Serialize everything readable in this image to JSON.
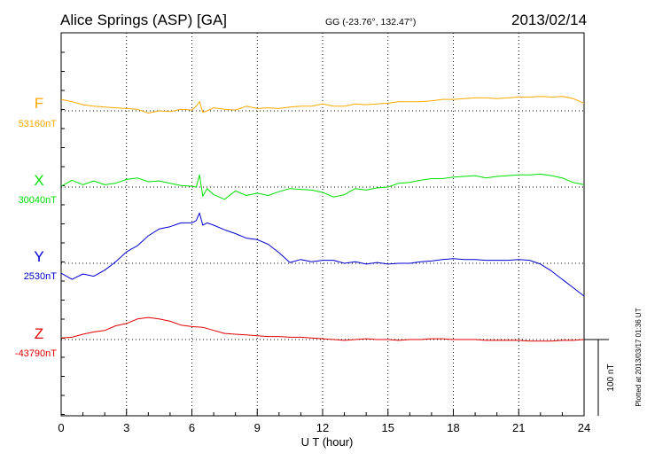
{
  "header": {
    "station": "Alice Springs (ASP)  [GA]",
    "coords": "GG (-23.76°, 132.47°)",
    "date": "2013/02/14"
  },
  "plotted_note": "Plotted at 2013/03/17 01:36 UT",
  "scale_label": "100 nT",
  "chart_data": {
    "type": "line",
    "xlabel": "U T (hour)",
    "xlim": [
      0,
      24
    ],
    "xticks": [
      0,
      3,
      6,
      9,
      12,
      15,
      18,
      21,
      24
    ],
    "xtick_labels": [
      "0",
      "3",
      "6",
      "9",
      "12",
      "15",
      "18",
      "21",
      "24"
    ],
    "units": "nT",
    "scale_bar_nT": 100,
    "grid": true,
    "series": [
      {
        "name": "F",
        "baseline_label": "53160nT",
        "baseline_nT": 53160,
        "color": "#ffa800",
        "x": [
          0,
          0.5,
          1,
          1.5,
          2,
          2.5,
          3,
          3.5,
          4,
          4.5,
          5,
          5.5,
          6,
          6.2,
          6.35,
          6.5,
          6.7,
          7,
          7.5,
          8,
          8.5,
          9,
          9.5,
          10,
          10.5,
          11,
          11.5,
          12,
          12.5,
          13,
          13.5,
          14,
          14.5,
          15,
          15.5,
          16,
          16.5,
          17,
          17.5,
          18,
          18.5,
          19,
          19.5,
          20,
          20.5,
          21,
          21.5,
          22,
          22.5,
          23,
          23.5,
          24
        ],
        "y": [
          53175,
          53172,
          53168,
          53166,
          53165,
          53164,
          53163,
          53162,
          53157,
          53160,
          53159,
          53162,
          53161,
          53166,
          53172,
          53158,
          53160,
          53164,
          53162,
          53161,
          53166,
          53163,
          53164,
          53163,
          53165,
          53166,
          53166,
          53169,
          53166,
          53166,
          53169,
          53168,
          53169,
          53170,
          53172,
          53172,
          53172,
          53173,
          53175,
          53175,
          53176,
          53177,
          53177,
          53176,
          53177,
          53178,
          53178,
          53179,
          53178,
          53179,
          53176,
          53170
        ]
      },
      {
        "name": "X",
        "baseline_label": "30040nT",
        "baseline_nT": 30040,
        "color": "#00e000",
        "x": [
          0,
          0.5,
          1,
          1.5,
          2,
          2.5,
          3,
          3.5,
          4,
          4.5,
          5,
          5.5,
          6,
          6.2,
          6.35,
          6.5,
          6.7,
          7,
          7.5,
          8,
          8.5,
          9,
          9.5,
          10,
          10.5,
          11,
          11.5,
          12,
          12.5,
          13,
          13.5,
          14,
          14.5,
          15,
          15.5,
          16,
          16.5,
          17,
          17.5,
          18,
          18.5,
          19,
          19.5,
          20,
          20.5,
          21,
          21.5,
          22,
          22.5,
          23,
          23.5,
          24
        ],
        "y": [
          30041,
          30049,
          30043,
          30048,
          30043,
          30045,
          30050,
          30052,
          30047,
          30048,
          30045,
          30042,
          30041,
          30040,
          30056,
          30028,
          30038,
          30030,
          30024,
          30035,
          30029,
          30032,
          30029,
          30034,
          30038,
          30037,
          30036,
          30033,
          30027,
          30030,
          30038,
          30036,
          30039,
          30040,
          30045,
          30046,
          30049,
          30051,
          30051,
          30053,
          30054,
          30055,
          30052,
          30054,
          30055,
          30056,
          30056,
          30057,
          30055,
          30052,
          30046,
          30043
        ]
      },
      {
        "name": "Y",
        "baseline_label": "2530nT",
        "baseline_nT": 2530,
        "color": "#0000d0",
        "x": [
          0,
          0.5,
          1,
          1.5,
          2,
          2.5,
          3,
          3.5,
          4,
          4.5,
          5,
          5.5,
          6,
          6.2,
          6.35,
          6.5,
          6.7,
          7,
          7.5,
          8,
          8.5,
          9,
          9.5,
          10,
          10.5,
          11,
          11.5,
          12,
          12.5,
          13,
          13.5,
          14,
          14.5,
          15,
          15.5,
          16,
          16.5,
          17,
          17.5,
          18,
          18.5,
          19,
          19.5,
          20,
          20.5,
          21,
          21.5,
          22,
          22.5,
          23,
          23.5,
          24
        ],
        "y": [
          2517,
          2509,
          2516,
          2513,
          2521,
          2532,
          2545,
          2553,
          2566,
          2575,
          2578,
          2583,
          2583,
          2586,
          2596,
          2580,
          2583,
          2580,
          2574,
          2569,
          2563,
          2561,
          2555,
          2544,
          2531,
          2535,
          2532,
          2534,
          2534,
          2530,
          2532,
          2529,
          2531,
          2529,
          2530,
          2530,
          2532,
          2533,
          2535,
          2536,
          2535,
          2535,
          2534,
          2534,
          2534,
          2535,
          2534,
          2529,
          2520,
          2509,
          2498,
          2487
        ]
      },
      {
        "name": "Z",
        "baseline_label": "-43790nT",
        "baseline_nT": -43790,
        "color": "#e00000",
        "x": [
          0,
          0.5,
          1,
          1.5,
          2,
          2.5,
          3,
          3.5,
          4,
          4.5,
          5,
          5.5,
          6,
          6.5,
          7,
          7.5,
          8,
          8.5,
          9,
          9.5,
          10,
          10.5,
          11,
          11.5,
          12,
          12.5,
          13,
          13.5,
          14,
          14.5,
          15,
          15.5,
          16,
          16.5,
          17,
          17.5,
          18,
          18.5,
          19,
          19.5,
          20,
          20.5,
          21,
          21.5,
          22,
          22.5,
          23,
          23.5,
          24
        ],
        "y": [
          -43788,
          -43787,
          -43783,
          -43780,
          -43778,
          -43772,
          -43769,
          -43763,
          -43761,
          -43763,
          -43766,
          -43771,
          -43773,
          -43774,
          -43778,
          -43782,
          -43783,
          -43784,
          -43785,
          -43786,
          -43786,
          -43787,
          -43787,
          -43788,
          -43789,
          -43790,
          -43791,
          -43790,
          -43789,
          -43790,
          -43790,
          -43791,
          -43790,
          -43790,
          -43789,
          -43789,
          -43790,
          -43790,
          -43790,
          -43791,
          -43791,
          -43791,
          -43791,
          -43792,
          -43792,
          -43792,
          -43791,
          -43791,
          -43790
        ]
      }
    ]
  }
}
